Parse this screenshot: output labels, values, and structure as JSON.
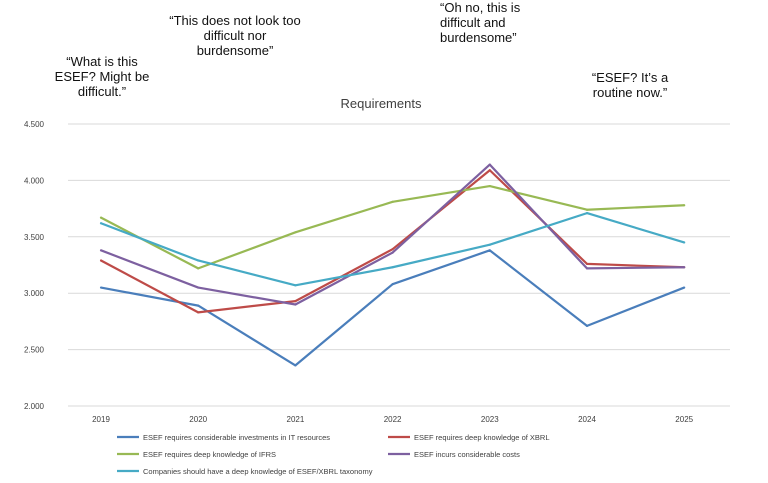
{
  "annotations": [
    {
      "id": "q1",
      "lines": [
        "“What is this",
        "ESEF? Might be",
        "difficult.”"
      ]
    },
    {
      "id": "q2",
      "lines": [
        "“This does not look too",
        "difficult nor",
        "burdensome”"
      ]
    },
    {
      "id": "q3",
      "lines": [
        "“Oh no, this is",
        "difficult and",
        "burdensome”"
      ]
    },
    {
      "id": "q4",
      "lines": [
        "“ESEF? It’s a",
        "routine now.”"
      ]
    }
  ],
  "chart_data": {
    "type": "line",
    "title": "Requirements",
    "xlabel": "",
    "ylabel": "",
    "categories": [
      "2019",
      "2020",
      "2021",
      "2022",
      "2023",
      "2024",
      "2025"
    ],
    "ylim": [
      2.0,
      4.5
    ],
    "yticks": [
      "2.000",
      "2.500",
      "3.000",
      "3.500",
      "4.000",
      "4.500"
    ],
    "ytick_values": [
      2.0,
      2.5,
      3.0,
      3.5,
      4.0,
      4.5
    ],
    "grid": true,
    "legend_position": "bottom",
    "series": [
      {
        "name": "ESEF requires considerable investments in IT resources",
        "color": "#4a7ebb",
        "values": [
          3.05,
          2.89,
          2.36,
          3.08,
          3.38,
          2.71,
          3.05
        ]
      },
      {
        "name": "ESEF requires deep knowledge of XBRL",
        "color": "#be4b48",
        "values": [
          3.29,
          2.83,
          2.93,
          3.39,
          4.09,
          3.26,
          3.23
        ]
      },
      {
        "name": "ESEF requires deep knowledge of IFRS",
        "color": "#98b954",
        "values": [
          3.67,
          3.22,
          3.54,
          3.81,
          3.95,
          3.74,
          3.78
        ]
      },
      {
        "name": "ESEF incurs considerable costs",
        "color": "#7d60a0",
        "values": [
          3.38,
          3.05,
          2.9,
          3.36,
          4.14,
          3.22,
          3.23
        ]
      },
      {
        "name": "Companies should have a deep knowledge of ESEF/XBRL taxonomy",
        "color": "#46aac5",
        "values": [
          3.62,
          3.29,
          3.07,
          3.23,
          3.43,
          3.71,
          3.45
        ]
      }
    ]
  }
}
